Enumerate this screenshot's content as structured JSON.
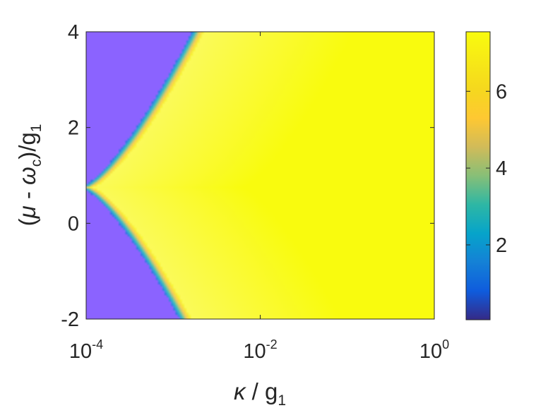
{
  "chart_data": {
    "type": "heatmap",
    "title": "",
    "xlabel": {
      "kappa": "κ",
      "sep": " / g",
      "sub": "1"
    },
    "ylabel": {
      "open": "(",
      "mu": "μ",
      "minus": " - ",
      "omega": "ω",
      "omega_sub": "c",
      "close": ")/g",
      "g_sub": "1"
    },
    "x_scale": "log",
    "xlim": [
      0.0001,
      1
    ],
    "ylim": [
      -2,
      4
    ],
    "x_ticks": [
      {
        "value": 0.0001,
        "base": "10",
        "exp": "-4"
      },
      {
        "value": 0.01,
        "base": "10",
        "exp": "-2"
      },
      {
        "value": 1,
        "base": "10",
        "exp": "0"
      }
    ],
    "y_ticks": [
      {
        "value": -2,
        "label": "-2"
      },
      {
        "value": 0,
        "label": "0"
      },
      {
        "value": 2,
        "label": "2"
      },
      {
        "value": 4,
        "label": "4"
      }
    ],
    "colorbar": {
      "colormap": "parula",
      "range": [
        0.05,
        7.55
      ],
      "ticks": [
        {
          "value": 2,
          "label": "2"
        },
        {
          "value": 4,
          "label": "4"
        },
        {
          "value": 6,
          "label": "6"
        }
      ]
    },
    "field": {
      "center_y": 0.75,
      "boundary_log_offset": 0.55,
      "boundary_curvature": 0.72,
      "low_value": 0.8,
      "high_value": 7.4,
      "saturation_value": 7.55,
      "transition_width_dex": 0.07
    },
    "grid": false,
    "colors": {
      "low_region": "#8B63FF",
      "high_region": "#FFFF40",
      "axes": "#262626",
      "background": "#ffffff"
    }
  }
}
